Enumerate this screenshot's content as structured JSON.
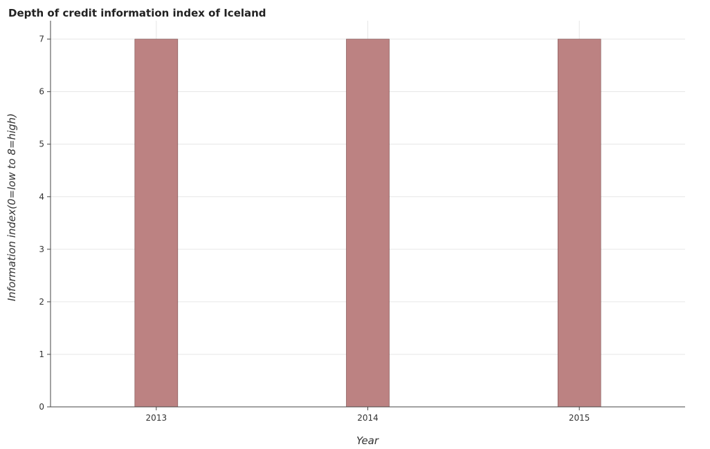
{
  "chart_data": {
    "type": "bar",
    "title": "Depth of credit information index of Iceland",
    "xlabel": "Year",
    "ylabel": "Information index(0=low to 8=high)",
    "categories": [
      "2013",
      "2014",
      "2015"
    ],
    "values": [
      7,
      7,
      7
    ],
    "ylim": [
      0,
      7.35
    ],
    "yticks": [
      0,
      1,
      2,
      3,
      4,
      5,
      6,
      7
    ],
    "grid": true,
    "legend": "none",
    "bar_color": "#bc8282"
  }
}
